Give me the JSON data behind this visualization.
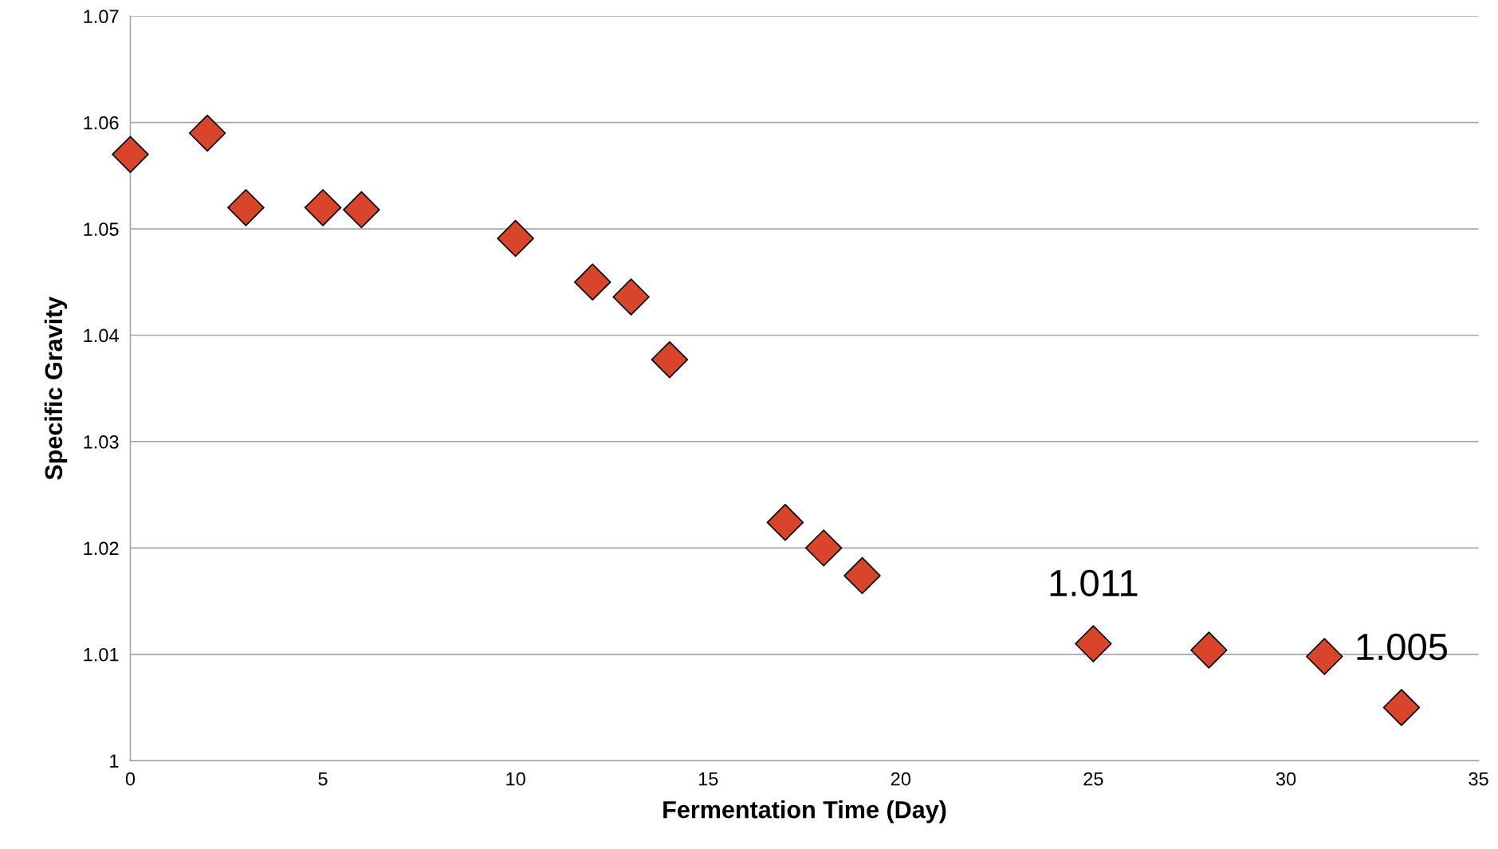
{
  "chart_data": {
    "type": "scatter",
    "xlabel": "Fermentation Time (Day)",
    "ylabel": "Specific Gravity",
    "x": [
      0,
      2,
      3,
      5,
      6,
      10,
      12,
      13,
      14,
      17,
      18,
      19,
      25,
      28,
      31,
      33
    ],
    "series": [
      {
        "color": "#d9452b",
        "values": [
          1.057,
          1.059,
          1.052,
          1.052,
          1.0518,
          1.0491,
          1.045,
          1.0436,
          1.0377,
          1.0224,
          1.02,
          1.0174,
          1.011,
          1.0104,
          1.0098,
          1.005
        ]
      }
    ],
    "marker": "diamond",
    "annotations": [
      {
        "text": "1.011",
        "x": 25,
        "y": 1.011
      },
      {
        "text": "1.005",
        "x": 33,
        "y": 1.005
      }
    ],
    "xlim": [
      0,
      35
    ],
    "xticks": [
      0,
      5,
      10,
      15,
      20,
      25,
      30,
      35
    ],
    "ylim": [
      1,
      1.07
    ],
    "yticks": [
      {
        "value": 1,
        "label": "1"
      },
      1.01,
      1.02,
      1.03,
      1.04,
      1.05,
      1.06,
      1.07
    ],
    "grid": "y"
  }
}
